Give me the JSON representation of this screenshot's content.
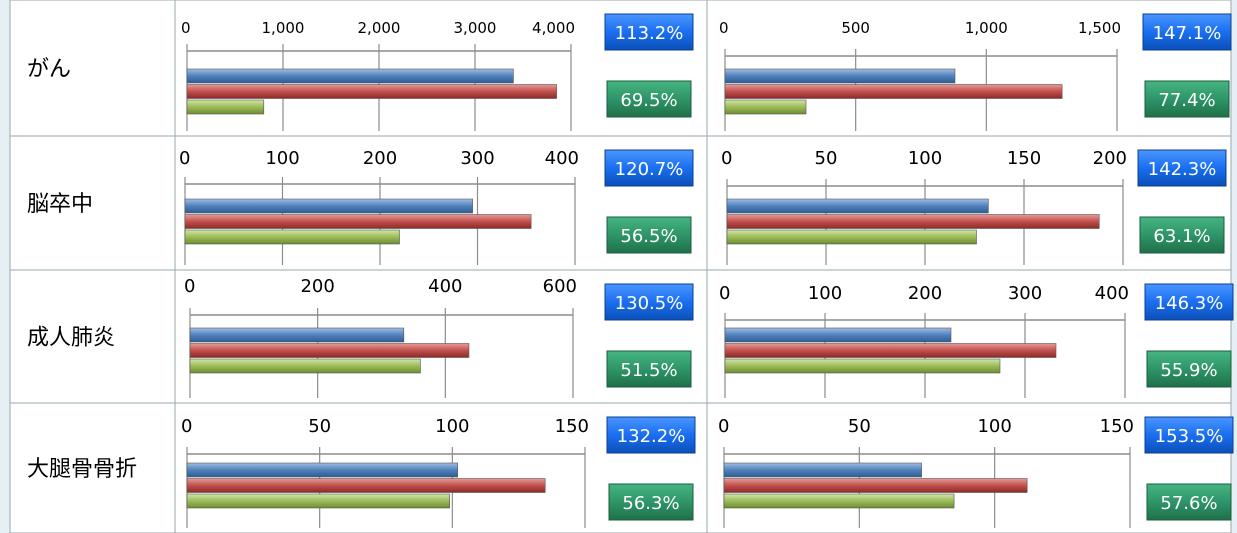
{
  "colors": {
    "background": "#e6f0f4",
    "panel": "#ffffff",
    "grid": "#8c8c8c",
    "badge_blue": "#1a6ff0",
    "badge_green": "#2e9568",
    "bar_blue": "#4f81bd",
    "bar_red": "#c0504d",
    "bar_green": "#9bbb59"
  },
  "chart_data": {
    "type": "bar",
    "orientation": "horizontal",
    "series_colors": [
      "#4f81bd",
      "#c0504d",
      "#9bbb59"
    ],
    "rows": [
      {
        "label": "がん",
        "charts": [
          {
            "ticks": [
              "0",
              "1,000",
              "2,000",
              "3,000",
              "4,000"
            ],
            "xlim": [
              0,
              4000
            ],
            "values": [
              3400,
              3850,
              800
            ],
            "badge_top": "113.2%",
            "badge_bottom": "69.5%"
          },
          {
            "ticks": [
              "0",
              "500",
              "1,000",
              "1,500"
            ],
            "xlim": [
              0,
              1500
            ],
            "values": [
              880,
              1290,
              310
            ],
            "badge_top": "147.1%",
            "badge_bottom": "77.4%"
          }
        ]
      },
      {
        "label": "脳卒中",
        "charts": [
          {
            "ticks": [
              "0",
              "100",
              "200",
              "300",
              "400"
            ],
            "xlim": [
              0,
              400
            ],
            "values": [
              295,
              355,
              220
            ],
            "badge_top": "120.7%",
            "badge_bottom": "56.5%"
          },
          {
            "ticks": [
              "0",
              "50",
              "100",
              "150",
              "200"
            ],
            "xlim": [
              0,
              200
            ],
            "values": [
              132,
              188,
              126
            ],
            "badge_top": "142.3%",
            "badge_bottom": "63.1%"
          }
        ]
      },
      {
        "label": "成人肺炎",
        "charts": [
          {
            "ticks": [
              "0",
              "200",
              "400",
              "600"
            ],
            "xlim": [
              0,
              600
            ],
            "values": [
              335,
              437,
              361
            ],
            "badge_top": "130.5%",
            "badge_bottom": "51.5%"
          },
          {
            "ticks": [
              "0",
              "100",
              "200",
              "300",
              "400"
            ],
            "xlim": [
              0,
              400
            ],
            "values": [
              226,
              331,
              275
            ],
            "badge_top": "146.3%",
            "badge_bottom": "55.9%"
          }
        ]
      },
      {
        "label": "大腿骨骨折",
        "charts": [
          {
            "ticks": [
              "0",
              "50",
              "100",
              "150"
            ],
            "xlim": [
              0,
              150
            ],
            "values": [
              102,
              135,
              99
            ],
            "badge_top": "132.2%",
            "badge_bottom": "56.3%"
          },
          {
            "ticks": [
              "0",
              "50",
              "100",
              "150"
            ],
            "xlim": [
              0,
              150
            ],
            "values": [
              73,
              112,
              85
            ],
            "badge_top": "153.5%",
            "badge_bottom": "57.6%"
          }
        ]
      }
    ]
  }
}
